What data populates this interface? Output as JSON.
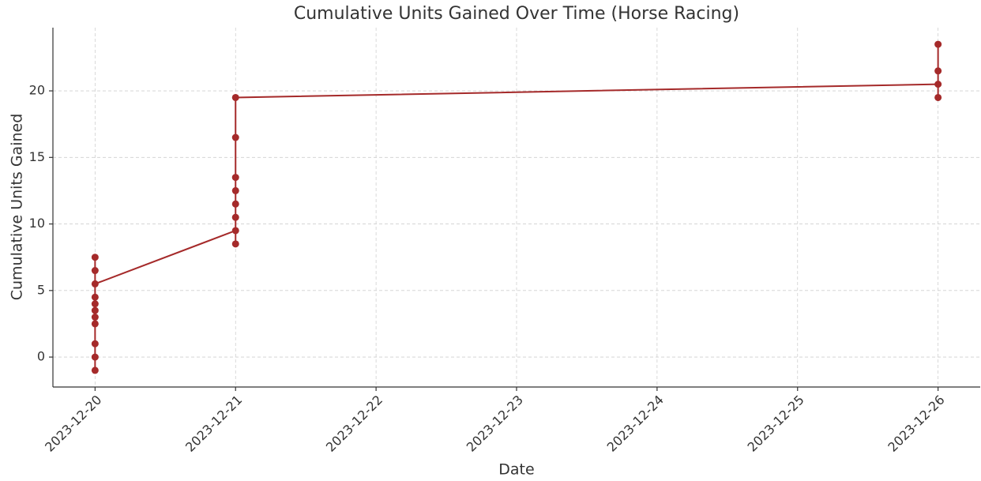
{
  "chart_data": {
    "type": "line",
    "title": "Cumulative Units Gained Over Time (Horse Racing)",
    "xlabel": "Date",
    "ylabel": "Cumulative Units Gained",
    "x": [
      "2023-12-20",
      "2023-12-20",
      "2023-12-20",
      "2023-12-20",
      "2023-12-20",
      "2023-12-20",
      "2023-12-20",
      "2023-12-20",
      "2023-12-20",
      "2023-12-20",
      "2023-12-20",
      "2023-12-21",
      "2023-12-21",
      "2023-12-21",
      "2023-12-21",
      "2023-12-21",
      "2023-12-21",
      "2023-12-21",
      "2023-12-21",
      "2023-12-26",
      "2023-12-26",
      "2023-12-26",
      "2023-12-26"
    ],
    "values": [
      -1,
      0,
      1,
      2.5,
      3,
      3.5,
      4,
      4.5,
      6.5,
      7.5,
      5.5,
      9.5,
      8.5,
      10.5,
      11.5,
      12.5,
      13.5,
      16.5,
      19.5,
      20.5,
      19.5,
      21.5,
      23.5
    ],
    "color": "#a52a2a",
    "xlim": [
      "2023-12-19T16:48",
      "2023-12-26T07:12"
    ],
    "xticks": [
      "2023-12-20",
      "2023-12-21",
      "2023-12-22",
      "2023-12-23",
      "2023-12-24",
      "2023-12-25",
      "2023-12-26"
    ],
    "ylim": [
      -2.25,
      24.75
    ],
    "yticks": [
      0,
      5,
      10,
      15,
      20
    ],
    "grid": true
  }
}
